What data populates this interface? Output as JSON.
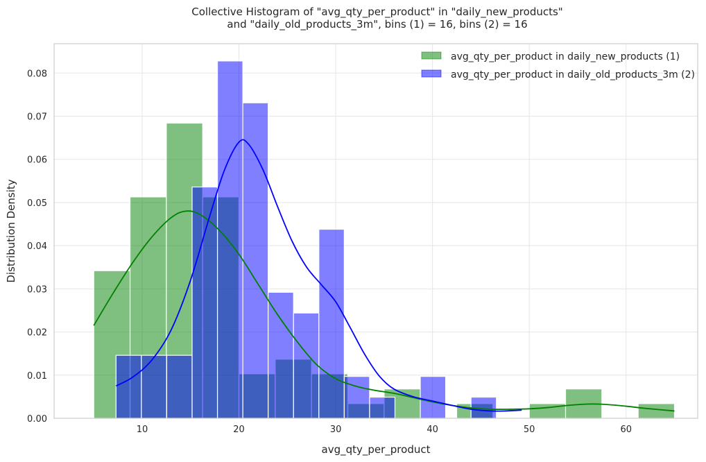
{
  "chart_data": {
    "type": "histogram",
    "title_lines": [
      "Collective Histogram of \"avg_qty_per_product\" in \"daily_new_products\"",
      "and \"daily_old_products_3m\", bins (1) = 16, bins (2) = 16"
    ],
    "xlabel": "avg_qty_per_product",
    "ylabel": "Distribution Density",
    "xlim": [
      0.9,
      67.4
    ],
    "ylim": [
      0,
      0.0868
    ],
    "x_ticks": [
      10,
      20,
      30,
      40,
      50,
      60
    ],
    "y_ticks": [
      0.0,
      0.01,
      0.02,
      0.03,
      0.04,
      0.05,
      0.06,
      0.07,
      0.08
    ],
    "y_tick_labels": [
      "0.00",
      "0.01",
      "0.02",
      "0.03",
      "0.04",
      "0.05",
      "0.06",
      "0.07",
      "0.08"
    ],
    "grid": true,
    "legend_position": "top-right",
    "series": [
      {
        "name": "avg_qty_per_product in daily_new_products (1)",
        "color": "#008000",
        "bin_edges": [
          5.0,
          8.75,
          12.5,
          16.25,
          20.0,
          23.75,
          27.5,
          31.25,
          35.0,
          38.75,
          42.5,
          46.25,
          50.0,
          53.75,
          57.5,
          61.25,
          65.0
        ],
        "densities": [
          0.0342,
          0.0513,
          0.0684,
          0.0513,
          0.0103,
          0.0137,
          0.0103,
          0.0034,
          0.0068,
          0.0,
          0.0034,
          0.0,
          0.0034,
          0.0068,
          0.0,
          0.0034
        ],
        "kde": [
          [
            5.0,
            0.0215
          ],
          [
            7.0,
            0.029
          ],
          [
            9.0,
            0.036
          ],
          [
            11.0,
            0.042
          ],
          [
            13.0,
            0.0465
          ],
          [
            14.5,
            0.048
          ],
          [
            16.0,
            0.0472
          ],
          [
            18.0,
            0.0435
          ],
          [
            20.0,
            0.038
          ],
          [
            22.0,
            0.031
          ],
          [
            24.0,
            0.024
          ],
          [
            26.0,
            0.0178
          ],
          [
            28.0,
            0.0125
          ],
          [
            30.0,
            0.0092
          ],
          [
            32.0,
            0.0075
          ],
          [
            34.0,
            0.0065
          ],
          [
            36.0,
            0.0058
          ],
          [
            38.0,
            0.0048
          ],
          [
            40.0,
            0.0038
          ],
          [
            42.0,
            0.003
          ],
          [
            44.0,
            0.0024
          ],
          [
            46.0,
            0.0021
          ],
          [
            48.0,
            0.0021
          ],
          [
            50.0,
            0.0022
          ],
          [
            52.0,
            0.0025
          ],
          [
            54.0,
            0.003
          ],
          [
            56.0,
            0.0033
          ],
          [
            58.0,
            0.0032
          ],
          [
            60.0,
            0.0028
          ],
          [
            62.0,
            0.0023
          ],
          [
            65.0,
            0.0017
          ]
        ]
      },
      {
        "name": "avg_qty_per_product in daily_old_products_3m (2)",
        "color": "#0000ff",
        "bin_edges": [
          7.3,
          9.92,
          12.54,
          15.16,
          17.78,
          20.4,
          23.02,
          25.64,
          28.26,
          30.88,
          33.5,
          36.12,
          38.74,
          41.36,
          43.98,
          46.6,
          49.22
        ],
        "densities": [
          0.0146,
          0.0146,
          0.0146,
          0.0536,
          0.0828,
          0.0731,
          0.0292,
          0.0244,
          0.0438,
          0.0097,
          0.0049,
          0.0,
          0.0097,
          0.0,
          0.0049,
          0.0
        ],
        "kde": [
          [
            7.3,
            0.0075
          ],
          [
            9.0,
            0.0095
          ],
          [
            11.0,
            0.0135
          ],
          [
            13.0,
            0.0205
          ],
          [
            15.0,
            0.032
          ],
          [
            17.0,
            0.047
          ],
          [
            18.5,
            0.0575
          ],
          [
            20.0,
            0.064
          ],
          [
            21.0,
            0.0635
          ],
          [
            22.5,
            0.0575
          ],
          [
            24.0,
            0.049
          ],
          [
            25.5,
            0.041
          ],
          [
            27.0,
            0.035
          ],
          [
            28.5,
            0.031
          ],
          [
            30.0,
            0.027
          ],
          [
            31.5,
            0.021
          ],
          [
            33.0,
            0.0148
          ],
          [
            34.5,
            0.0098
          ],
          [
            36.0,
            0.0068
          ],
          [
            38.0,
            0.005
          ],
          [
            40.0,
            0.004
          ],
          [
            42.0,
            0.003
          ],
          [
            44.0,
            0.0021
          ],
          [
            46.0,
            0.0017
          ],
          [
            47.5,
            0.0017
          ],
          [
            49.22,
            0.0019
          ]
        ]
      }
    ]
  }
}
